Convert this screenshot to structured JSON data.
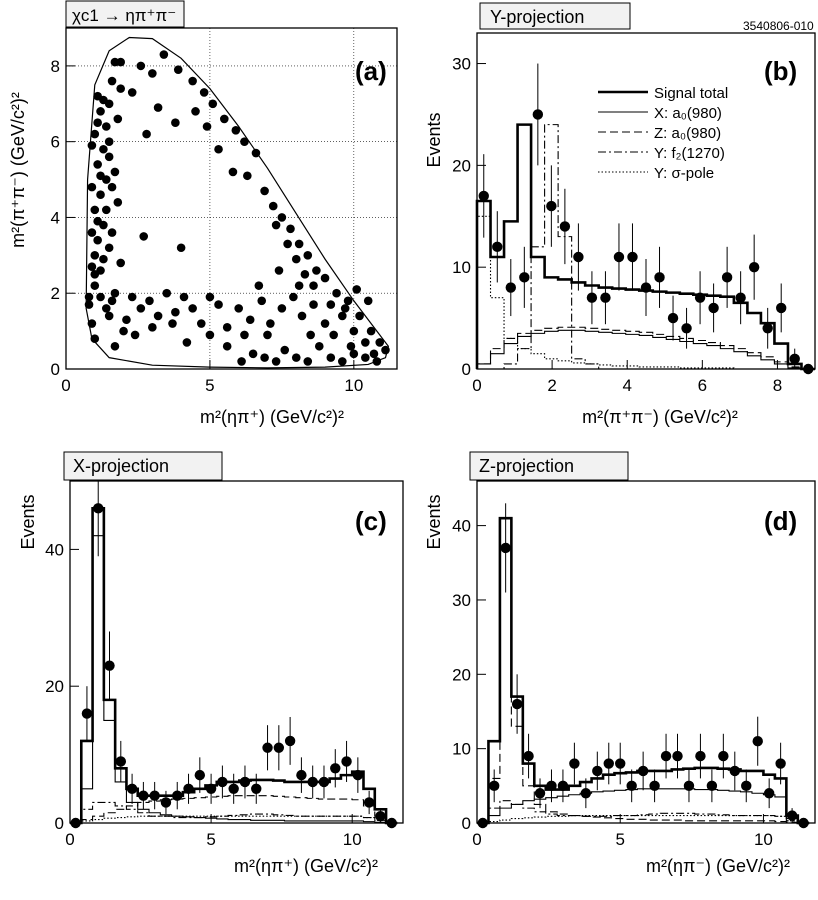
{
  "figure_id": "3540806-010",
  "chart_data": [
    {
      "panel": "(a)",
      "type": "scatter",
      "title": "χc1 → ηπ⁺π⁻",
      "xlabel": "m²(ηπ⁺)  (GeV/c²)²",
      "ylabel": "m²(π⁺π⁻)  (GeV/c²)²",
      "xlim": [
        0,
        11.5
      ],
      "ylim": [
        0,
        9
      ],
      "xticks": [
        0,
        5,
        10
      ],
      "yticks": [
        0,
        2,
        4,
        6,
        8
      ],
      "grid": true,
      "points": [
        [
          0.8,
          1.7
        ],
        [
          0.9,
          1.2
        ],
        [
          1.0,
          0.8
        ],
        [
          0.8,
          1.9
        ],
        [
          1.0,
          2.2
        ],
        [
          1.2,
          2.6
        ],
        [
          1.0,
          3.0
        ],
        [
          1.1,
          3.4
        ],
        [
          1.3,
          3.8
        ],
        [
          1.0,
          4.2
        ],
        [
          1.2,
          4.6
        ],
        [
          1.4,
          5.0
        ],
        [
          1.1,
          5.4
        ],
        [
          1.3,
          5.8
        ],
        [
          1.0,
          6.2
        ],
        [
          1.4,
          6.4
        ],
        [
          1.2,
          6.8
        ],
        [
          1.5,
          7.0
        ],
        [
          1.1,
          7.2
        ],
        [
          1.6,
          7.6
        ],
        [
          1.7,
          8.1
        ],
        [
          1.9,
          8.1
        ],
        [
          1.5,
          6.0
        ],
        [
          1.7,
          5.2
        ],
        [
          1.8,
          4.4
        ],
        [
          1.6,
          3.6
        ],
        [
          1.9,
          2.8
        ],
        [
          1.7,
          2.0
        ],
        [
          1.5,
          1.4
        ],
        [
          2.0,
          1.0
        ],
        [
          1.2,
          1.9
        ],
        [
          1.4,
          1.6
        ],
        [
          1.6,
          1.8
        ],
        [
          1.0,
          2.5
        ],
        [
          1.3,
          2.9
        ],
        [
          1.5,
          3.2
        ],
        [
          1.1,
          3.9
        ],
        [
          1.4,
          4.2
        ],
        [
          1.6,
          4.8
        ],
        [
          1.2,
          5.1
        ],
        [
          1.5,
          5.6
        ],
        [
          1.1,
          6.5
        ],
        [
          1.3,
          7.1
        ],
        [
          1.8,
          6.6
        ],
        [
          1.9,
          7.4
        ],
        [
          0.9,
          2.7
        ],
        [
          0.9,
          3.6
        ],
        [
          0.9,
          4.8
        ],
        [
          0.9,
          5.9
        ],
        [
          1.7,
          0.6
        ],
        [
          2.1,
          1.3
        ],
        [
          2.3,
          1.9
        ],
        [
          2.6,
          1.6
        ],
        [
          2.9,
          1.8
        ],
        [
          3.2,
          1.4
        ],
        [
          3.5,
          2.0
        ],
        [
          3.8,
          1.5
        ],
        [
          4.1,
          1.9
        ],
        [
          4.4,
          1.6
        ],
        [
          4.7,
          1.2
        ],
        [
          5.0,
          0.9
        ],
        [
          5.3,
          1.7
        ],
        [
          5.6,
          1.1
        ],
        [
          2.4,
          0.9
        ],
        [
          3.0,
          1.1
        ],
        [
          3.7,
          1.2
        ],
        [
          4.2,
          0.7
        ],
        [
          5.0,
          1.9
        ],
        [
          4.0,
          3.2
        ],
        [
          2.7,
          3.5
        ],
        [
          2.6,
          8.0
        ],
        [
          3.0,
          7.8
        ],
        [
          3.4,
          8.3
        ],
        [
          3.9,
          7.9
        ],
        [
          4.4,
          7.6
        ],
        [
          4.8,
          7.3
        ],
        [
          5.1,
          7.0
        ],
        [
          5.5,
          6.6
        ],
        [
          5.9,
          6.3
        ],
        [
          6.2,
          6.0
        ],
        [
          6.6,
          5.7
        ],
        [
          5.3,
          5.8
        ],
        [
          4.9,
          6.4
        ],
        [
          4.5,
          6.8
        ],
        [
          2.3,
          7.3
        ],
        [
          3.2,
          6.9
        ],
        [
          3.8,
          6.5
        ],
        [
          2.8,
          6.2
        ],
        [
          5.8,
          5.2
        ],
        [
          6.3,
          5.1
        ],
        [
          6.9,
          4.7
        ],
        [
          7.2,
          4.3
        ],
        [
          7.5,
          4.0
        ],
        [
          7.8,
          3.7
        ],
        [
          8.1,
          3.3
        ],
        [
          8.4,
          3.0
        ],
        [
          8.7,
          2.6
        ],
        [
          9.0,
          2.4
        ],
        [
          9.4,
          2.0
        ],
        [
          9.8,
          1.8
        ],
        [
          10.2,
          1.4
        ],
        [
          10.6,
          1.0
        ],
        [
          10.9,
          0.7
        ],
        [
          11.1,
          0.5
        ],
        [
          7.3,
          3.8
        ],
        [
          7.7,
          3.3
        ],
        [
          8.0,
          2.9
        ],
        [
          8.3,
          2.5
        ],
        [
          8.6,
          2.2
        ],
        [
          9.2,
          1.7
        ],
        [
          9.6,
          1.4
        ],
        [
          10.0,
          1.0
        ],
        [
          10.4,
          0.7
        ],
        [
          10.7,
          0.4
        ],
        [
          6.1,
          0.2
        ],
        [
          6.5,
          0.4
        ],
        [
          6.9,
          0.3
        ],
        [
          7.3,
          0.2
        ],
        [
          7.6,
          0.5
        ],
        [
          8.0,
          0.3
        ],
        [
          8.4,
          0.2
        ],
        [
          8.8,
          0.6
        ],
        [
          9.2,
          0.3
        ],
        [
          9.6,
          0.2
        ],
        [
          10.0,
          0.4
        ],
        [
          10.4,
          0.3
        ],
        [
          10.8,
          0.2
        ],
        [
          6.0,
          1.6
        ],
        [
          6.4,
          1.3
        ],
        [
          6.8,
          1.8
        ],
        [
          7.1,
          1.2
        ],
        [
          7.5,
          1.6
        ],
        [
          7.9,
          1.9
        ],
        [
          8.2,
          1.4
        ],
        [
          8.6,
          1.7
        ],
        [
          9.0,
          1.2
        ],
        [
          9.3,
          0.9
        ],
        [
          9.7,
          1.6
        ],
        [
          10.1,
          2.1
        ],
        [
          10.5,
          1.8
        ],
        [
          6.7,
          2.2
        ],
        [
          7.4,
          2.6
        ],
        [
          8.1,
          2.2
        ],
        [
          7.0,
          0.9
        ],
        [
          8.5,
          0.9
        ],
        [
          9.9,
          0.6
        ],
        [
          5.6,
          0.6
        ],
        [
          6.2,
          0.9
        ]
      ]
    },
    {
      "panel": "(b)",
      "type": "bar",
      "title": "Y-projection",
      "xlabel": "m²(π⁺π⁻)  (GeV/c²)²",
      "ylabel": "Events",
      "xlim": [
        0,
        9
      ],
      "ylim": [
        0,
        33
      ],
      "xticks": [
        0,
        2,
        4,
        6,
        8
      ],
      "yticks": [
        0,
        10,
        20,
        30
      ],
      "binwidth": 0.36,
      "x": [
        0.18,
        0.54,
        0.9,
        1.26,
        1.62,
        1.98,
        2.34,
        2.7,
        3.06,
        3.42,
        3.78,
        4.14,
        4.5,
        4.86,
        5.22,
        5.58,
        5.94,
        6.3,
        6.66,
        7.02,
        7.38,
        7.74,
        8.1,
        8.46,
        8.82
      ],
      "y": [
        17,
        12,
        8,
        9,
        25,
        16,
        14,
        11,
        7,
        7,
        11,
        11,
        8,
        9,
        5,
        4,
        7,
        6,
        9,
        7,
        10,
        4,
        6,
        1,
        0
      ],
      "err": [
        4.1,
        3.5,
        2.8,
        3.0,
        5.0,
        4.0,
        3.7,
        3.3,
        2.6,
        2.6,
        3.3,
        3.3,
        2.8,
        3.0,
        2.2,
        2.0,
        2.6,
        2.4,
        3.0,
        2.6,
        3.2,
        2.0,
        2.4,
        1.0,
        0
      ],
      "fit": {
        "signal_total": [
          16.5,
          11,
          14.5,
          24,
          11,
          9,
          8.8,
          8.5,
          8.2,
          8,
          7.9,
          7.8,
          7.7,
          7.6,
          7.5,
          7.4,
          7.3,
          7.2,
          7.1,
          6.5,
          5.5,
          4.5,
          2.5,
          0.5,
          0
        ],
        "x_a0_980": [
          0.5,
          1.5,
          2.5,
          3.2,
          3.5,
          3.7,
          3.8,
          3.8,
          3.7,
          3.6,
          3.5,
          3.4,
          3.3,
          3.1,
          2.9,
          2.7,
          2.5,
          2.3,
          2.0,
          1.7,
          1.3,
          0.9,
          0.5,
          0.1,
          0
        ],
        "z_a0_980": [
          0.5,
          2,
          3,
          3.5,
          3.8,
          4,
          4.1,
          4.1,
          4,
          3.9,
          3.8,
          3.7,
          3.6,
          3.4,
          3.2,
          3,
          2.8,
          2.6,
          2.3,
          2,
          1.6,
          1.2,
          0.7,
          0.2,
          0
        ],
        "y_f2_1270": [
          0,
          0,
          0.5,
          2,
          12,
          24,
          13,
          1,
          0.5,
          0,
          0,
          0,
          0,
          0,
          0,
          0,
          0,
          0,
          0,
          0,
          0,
          0,
          0,
          0,
          0
        ],
        "y_sigma_pole": [
          15,
          7,
          3,
          2,
          1.5,
          1,
          0.8,
          0.6,
          0.5,
          0.4,
          0.3,
          0.3,
          0.2,
          0.2,
          0.2,
          0.1,
          0.1,
          0.1,
          0.1,
          0,
          0,
          0,
          0,
          0,
          0
        ]
      },
      "legend": [
        "Signal total",
        "X: a₀(980)",
        "Z: a₀(980)",
        "Y: f₂(1270)",
        "Y: σ-pole"
      ],
      "legend_position": "top-right"
    },
    {
      "panel": "(c)",
      "type": "bar",
      "title": "X-projection",
      "xlabel": "m²(ηπ⁺)  (GeV/c²)²",
      "ylabel": "Events",
      "xlim": [
        0,
        11.8
      ],
      "ylim": [
        0,
        50
      ],
      "xticks": [
        0,
        5,
        10
      ],
      "yticks": [
        0,
        20,
        40
      ],
      "binwidth": 0.4,
      "x": [
        0.2,
        0.6,
        1.0,
        1.4,
        1.8,
        2.2,
        2.6,
        3.0,
        3.4,
        3.8,
        4.2,
        4.6,
        5.0,
        5.4,
        5.8,
        6.2,
        6.6,
        7.0,
        7.4,
        7.8,
        8.2,
        8.6,
        9.0,
        9.4,
        9.8,
        10.2,
        10.6,
        11.0,
        11.4
      ],
      "y": [
        0,
        16,
        46,
        23,
        9,
        5,
        4,
        4,
        3,
        4,
        5,
        7,
        5,
        6,
        5,
        6,
        5,
        11,
        11,
        12,
        7,
        6,
        6,
        8,
        9,
        7,
        3,
        1,
        0
      ],
      "err": [
        0,
        4,
        7,
        5,
        3,
        2.2,
        2,
        2,
        1.7,
        2,
        2.2,
        2.6,
        2.2,
        2.4,
        2.2,
        2.4,
        2.2,
        3.3,
        3.3,
        3.5,
        2.6,
        2.4,
        2.4,
        2.8,
        3,
        2.6,
        1.7,
        1,
        0
      ],
      "fit": {
        "signal_total": [
          0,
          12,
          46,
          18,
          8,
          5,
          4,
          4,
          4,
          4,
          4.5,
          5,
          5.5,
          6,
          6,
          6.2,
          6.3,
          6.3,
          6.2,
          6,
          6,
          6,
          6,
          6.5,
          7,
          7.5,
          5,
          2,
          0
        ],
        "x_a0_980": [
          0,
          5,
          42,
          15,
          6,
          3,
          2,
          1.5,
          1.2,
          1,
          0.9,
          0.8,
          0.7,
          0.6,
          0.5,
          0.5,
          0.4,
          0.4,
          0.4,
          0.3,
          0.3,
          0.3,
          0.3,
          0.3,
          0.3,
          0.3,
          0.2,
          0.1,
          0
        ],
        "z_a0_980": [
          0,
          0.5,
          1,
          1.5,
          2,
          2.5,
          3,
          3.2,
          3.4,
          3.5,
          3.6,
          3.7,
          3.8,
          3.9,
          4,
          4,
          4,
          4,
          3.9,
          3.8,
          3.7,
          3.6,
          3.5,
          3.5,
          3.5,
          3.4,
          2.5,
          1,
          0
        ],
        "y_f2_1270": [
          0,
          2,
          3,
          3,
          2.5,
          2,
          1.5,
          1,
          1,
          0.8,
          0.8,
          0.8,
          0.9,
          1,
          1.1,
          1.2,
          1.3,
          1.3,
          1.2,
          1.1,
          1,
          1,
          1,
          1,
          1,
          1,
          0.8,
          0.4,
          0
        ],
        "y_sigma_pole": [
          0,
          0.3,
          0.5,
          0.7,
          0.8,
          0.9,
          1,
          1,
          1,
          1,
          1,
          1,
          1,
          1,
          1,
          1,
          1,
          1,
          1,
          1,
          1,
          1,
          1,
          1,
          1,
          1,
          0.8,
          0.4,
          0
        ]
      }
    },
    {
      "panel": "(d)",
      "type": "bar",
      "title": "Z-projection",
      "xlabel": "m²(ηπ⁻)  (GeV/c²)²",
      "ylabel": "Events",
      "xlim": [
        0,
        11.8
      ],
      "ylim": [
        0,
        46
      ],
      "xticks": [
        0,
        5,
        10
      ],
      "yticks": [
        0,
        10,
        20,
        30,
        40
      ],
      "binwidth": 0.4,
      "x": [
        0.2,
        0.6,
        1.0,
        1.4,
        1.8,
        2.2,
        2.6,
        3.0,
        3.4,
        3.8,
        4.2,
        4.6,
        5.0,
        5.4,
        5.8,
        6.2,
        6.6,
        7.0,
        7.4,
        7.8,
        8.2,
        8.6,
        9.0,
        9.4,
        9.8,
        10.2,
        10.6,
        11.0,
        11.4
      ],
      "y": [
        0,
        5,
        37,
        16,
        9,
        4,
        5,
        5,
        8,
        4,
        7,
        8,
        8,
        5,
        7,
        5,
        9,
        9,
        5,
        9,
        5,
        9,
        7,
        5,
        11,
        4,
        8,
        1,
        0
      ],
      "err": [
        0,
        2.2,
        6,
        4,
        3,
        2,
        2.2,
        2.2,
        2.8,
        2,
        2.6,
        2.8,
        2.8,
        2.2,
        2.6,
        2.2,
        3,
        3,
        2.2,
        3,
        2.2,
        3,
        2.6,
        2.2,
        3.3,
        2,
        2.8,
        1,
        0
      ],
      "fit": {
        "signal_total": [
          0,
          11,
          41,
          17,
          8,
          5,
          4.5,
          4.5,
          5,
          5.5,
          6,
          6.5,
          6.7,
          6.8,
          7,
          7,
          7,
          7.2,
          7.3,
          7.4,
          7.4,
          7.3,
          7.2,
          7,
          7,
          6.5,
          6,
          1,
          0
        ],
        "x_a0_980": [
          0,
          1,
          2,
          2.5,
          3,
          3.2,
          3.4,
          3.6,
          3.8,
          4,
          4.2,
          4.3,
          4.4,
          4.5,
          4.6,
          4.6,
          4.6,
          4.6,
          4.6,
          4.5,
          4.5,
          4.4,
          4.3,
          4.2,
          4.0,
          3.8,
          3.5,
          0.6,
          0
        ],
        "z_a0_980": [
          0,
          6,
          37,
          13,
          5,
          2.5,
          1.5,
          1.2,
          1,
          0.9,
          0.8,
          0.7,
          0.6,
          0.5,
          0.5,
          0.4,
          0.4,
          0.4,
          0.3,
          0.3,
          0.3,
          0.3,
          0.3,
          0.3,
          0.3,
          0.3,
          0.2,
          0.1,
          0
        ],
        "y_f2_1270": [
          0,
          2,
          3,
          2.5,
          2,
          1.5,
          1.2,
          1,
          1,
          0.9,
          0.9,
          0.9,
          1,
          1,
          1.1,
          1.2,
          1.3,
          1.3,
          1.3,
          1.2,
          1.2,
          1.1,
          1,
          1,
          1,
          1,
          0.9,
          0.3,
          0
        ],
        "y_sigma_pole": [
          0,
          0.2,
          0.4,
          0.6,
          0.7,
          0.8,
          0.9,
          0.9,
          1,
          1,
          1,
          1,
          1,
          1,
          1,
          1,
          1,
          1,
          1,
          1,
          1,
          1,
          1,
          1,
          1,
          1,
          0.9,
          0.3,
          0
        ]
      }
    }
  ]
}
